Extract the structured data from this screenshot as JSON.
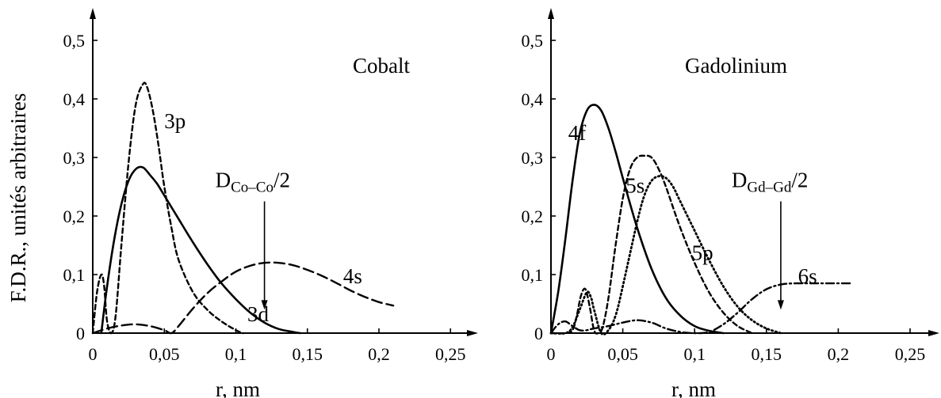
{
  "ylabel": "F.D.R., unités arbitraires",
  "chart_data": [
    {
      "type": "line",
      "title": "Cobalt",
      "xlabel": "r, nm",
      "ylabel": "F.D.R., unités arbitraires",
      "xlim": [
        0,
        0.27
      ],
      "ylim": [
        0,
        0.5
      ],
      "x_ticks": [
        0,
        0.05,
        0.1,
        0.15,
        0.2,
        0.25
      ],
      "x_tick_labels": [
        "0",
        "0,05",
        "0,1",
        "0,15",
        "0,2",
        "0,25"
      ],
      "y_ticks": [
        0,
        0.1,
        0.2,
        0.3,
        0.4,
        0.5
      ],
      "y_tick_labels": [
        "0",
        "0,1",
        "0,2",
        "0,3",
        "0,4",
        "0,5"
      ],
      "grid": false,
      "series": [
        {
          "name": "3d",
          "style": "solid",
          "label_xy": [
            0.108,
            0.02
          ],
          "x": [
            0.006,
            0.01,
            0.015,
            0.02,
            0.025,
            0.03,
            0.035,
            0.04,
            0.045,
            0.05,
            0.06,
            0.07,
            0.08,
            0.09,
            0.1,
            0.11,
            0.12,
            0.13,
            0.14,
            0.145
          ],
          "y": [
            0,
            0.08,
            0.16,
            0.22,
            0.26,
            0.28,
            0.283,
            0.27,
            0.255,
            0.235,
            0.195,
            0.155,
            0.118,
            0.085,
            0.058,
            0.035,
            0.018,
            0.007,
            0.002,
            0
          ]
        },
        {
          "name": "3p",
          "style": "dashed",
          "label_xy": [
            0.05,
            0.35
          ],
          "x": [
            0,
            0.003,
            0.006,
            0.008,
            0.01,
            0.013,
            0.016,
            0.02,
            0.025,
            0.03,
            0.035,
            0.038,
            0.042,
            0.046,
            0.05,
            0.055,
            0.06,
            0.07,
            0.08,
            0.09,
            0.1,
            0.105
          ],
          "y": [
            0,
            0.07,
            0.1,
            0.08,
            0.02,
            0,
            0.03,
            0.15,
            0.29,
            0.39,
            0.425,
            0.42,
            0.38,
            0.32,
            0.25,
            0.18,
            0.125,
            0.07,
            0.04,
            0.02,
            0.005,
            0
          ]
        },
        {
          "name": "4s",
          "style": "long-dashed",
          "label_xy": [
            0.175,
            0.085
          ],
          "x": [
            0,
            0.005,
            0.01,
            0.02,
            0.03,
            0.04,
            0.05,
            0.055,
            0.06,
            0.07,
            0.08,
            0.09,
            0.1,
            0.11,
            0.12,
            0.13,
            0.14,
            0.15,
            0.16,
            0.17,
            0.18,
            0.19,
            0.2,
            0.21
          ],
          "y": [
            0,
            0.004,
            0.008,
            0.013,
            0.015,
            0.012,
            0.005,
            0,
            0.012,
            0.042,
            0.068,
            0.088,
            0.105,
            0.115,
            0.12,
            0.12,
            0.116,
            0.108,
            0.098,
            0.086,
            0.073,
            0.062,
            0.053,
            0.047
          ]
        }
      ],
      "annotation": {
        "base": "D",
        "sub": "Co–Co",
        "suffix": "/2",
        "x": 0.12,
        "y_from": 0.225,
        "y_to": 0.04
      }
    },
    {
      "type": "line",
      "title": "Gadolinium",
      "xlabel": "r, nm",
      "xlim": [
        0,
        0.27
      ],
      "ylim": [
        0,
        0.5
      ],
      "x_ticks": [
        0,
        0.05,
        0.1,
        0.15,
        0.2,
        0.25
      ],
      "x_tick_labels": [
        "0",
        "0,05",
        "0,1",
        "0,15",
        "0,2",
        "0,25"
      ],
      "y_ticks": [
        0,
        0.1,
        0.2,
        0.3,
        0.4,
        0.5
      ],
      "y_tick_labels": [
        "0",
        "0,1",
        "0,2",
        "0,3",
        "0,4",
        "0,5"
      ],
      "grid": false,
      "series": [
        {
          "name": "4f",
          "style": "solid",
          "label_xy": [
            0.012,
            0.33
          ],
          "x": [
            0,
            0.005,
            0.01,
            0.015,
            0.02,
            0.025,
            0.03,
            0.035,
            0.04,
            0.045,
            0.05,
            0.06,
            0.07,
            0.08,
            0.09,
            0.1,
            0.11,
            0.12
          ],
          "y": [
            0,
            0.07,
            0.16,
            0.26,
            0.34,
            0.38,
            0.39,
            0.38,
            0.35,
            0.31,
            0.265,
            0.18,
            0.11,
            0.06,
            0.03,
            0.012,
            0.004,
            0
          ]
        },
        {
          "name": "5s",
          "style": "dashed",
          "label_xy": [
            0.052,
            0.24
          ],
          "x": [
            0,
            0.01,
            0.015,
            0.018,
            0.021,
            0.024,
            0.027,
            0.03,
            0.033,
            0.036,
            0.04,
            0.045,
            0.05,
            0.055,
            0.06,
            0.065,
            0.07,
            0.075,
            0.08,
            0.09,
            0.1,
            0.11,
            0.12,
            0.13,
            0.14
          ],
          "y": [
            0,
            0,
            0.005,
            0.03,
            0.065,
            0.075,
            0.045,
            0.005,
            0,
            0.01,
            0.06,
            0.15,
            0.23,
            0.28,
            0.3,
            0.303,
            0.3,
            0.28,
            0.25,
            0.18,
            0.12,
            0.07,
            0.035,
            0.012,
            0
          ]
        },
        {
          "name": "5p",
          "style": "dotted",
          "label_xy": [
            0.098,
            0.125
          ],
          "x": [
            0,
            0.01,
            0.015,
            0.02,
            0.025,
            0.028,
            0.03,
            0.035,
            0.04,
            0.045,
            0.05,
            0.06,
            0.065,
            0.07,
            0.075,
            0.08,
            0.085,
            0.09,
            0.1,
            0.11,
            0.12,
            0.13,
            0.14,
            0.15,
            0.16
          ],
          "y": [
            0,
            0,
            0.01,
            0.04,
            0.07,
            0.06,
            0.04,
            0,
            0.005,
            0.03,
            0.08,
            0.19,
            0.235,
            0.26,
            0.268,
            0.265,
            0.25,
            0.225,
            0.175,
            0.125,
            0.08,
            0.045,
            0.022,
            0.008,
            0
          ]
        },
        {
          "name": "6s",
          "style": "dash-dot",
          "label_xy": [
            0.172,
            0.085
          ],
          "x": [
            0,
            0.005,
            0.01,
            0.015,
            0.02,
            0.025,
            0.03,
            0.04,
            0.05,
            0.06,
            0.07,
            0.08,
            0.09,
            0.1,
            0.11,
            0.12,
            0.13,
            0.14,
            0.15,
            0.16,
            0.17,
            0.18,
            0.19,
            0.2,
            0.21
          ],
          "y": [
            0,
            0.015,
            0.02,
            0.012,
            0.005,
            0.005,
            0.008,
            0.012,
            0.018,
            0.022,
            0.018,
            0.008,
            0.002,
            0,
            0.002,
            0.015,
            0.035,
            0.058,
            0.075,
            0.083,
            0.085,
            0.085,
            0.085,
            0.085,
            0.085
          ]
        }
      ],
      "annotation": {
        "base": "D",
        "sub": "Gd–Gd",
        "suffix": "/2",
        "x": 0.16,
        "y_from": 0.225,
        "y_to": 0.04
      }
    }
  ]
}
